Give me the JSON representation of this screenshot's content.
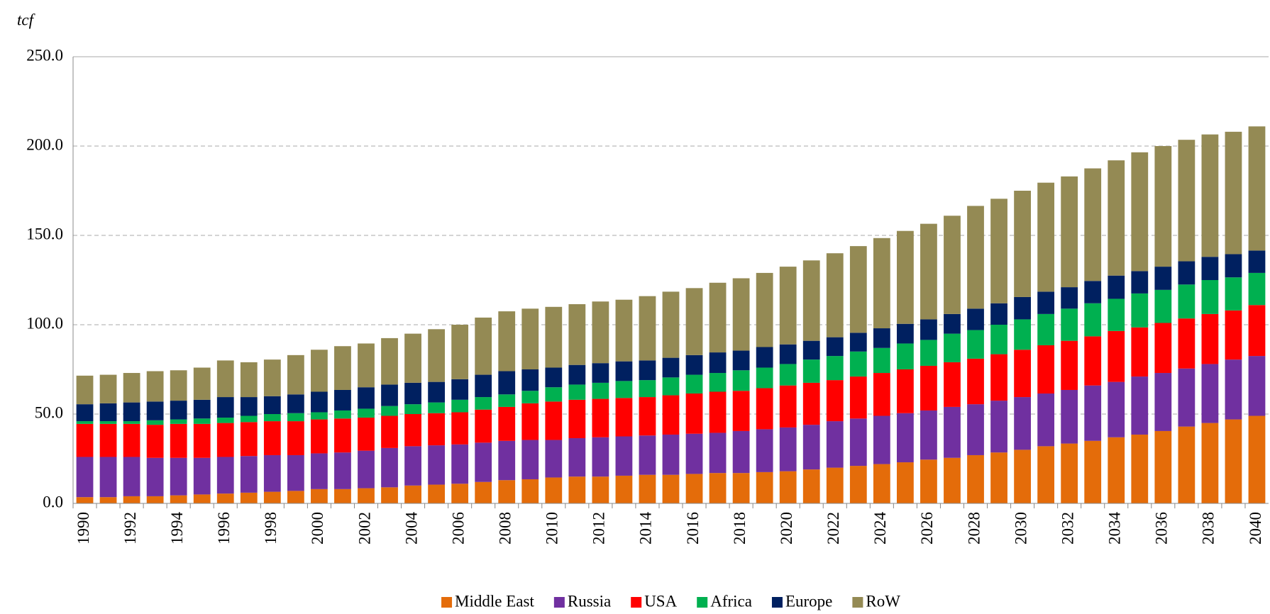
{
  "chart_data": {
    "type": "stacked_bar",
    "y_label": "tcf",
    "categories": [
      "1990",
      null,
      "1992",
      null,
      "1994",
      null,
      "1996",
      null,
      "1998",
      null,
      "2000",
      null,
      "2002",
      null,
      "2004",
      null,
      "2006",
      null,
      "2008",
      null,
      "2010",
      null,
      "2012",
      null,
      "2014",
      null,
      "2016",
      null,
      "2018",
      null,
      "2020",
      null,
      "2022",
      null,
      "2024",
      null,
      "2026",
      null,
      "2028",
      null,
      "2030",
      null,
      "2032",
      null,
      "2034",
      null,
      "2036",
      null,
      "2038",
      null,
      "2040"
    ],
    "series": [
      {
        "name": "Middle East",
        "color": "#e46c0a",
        "values": [
          3.5,
          3.5,
          4,
          4,
          4.5,
          5,
          5.5,
          6,
          6.5,
          7,
          8,
          8,
          8.5,
          9,
          10,
          10.5,
          11,
          12,
          13,
          13.5,
          14.5,
          15,
          15,
          15.5,
          16,
          16,
          16.5,
          17,
          17,
          17.5,
          18,
          19,
          20,
          21,
          22,
          23,
          24.5,
          25.5,
          27,
          28.5,
          30,
          32,
          33.5,
          35,
          37,
          38.5,
          40.5,
          43,
          45,
          47,
          49
        ]
      },
      {
        "name": "Russia",
        "color": "#7030a0",
        "values": [
          22.5,
          22.5,
          22,
          21.5,
          21,
          20.5,
          20.5,
          20.5,
          20.5,
          20,
          20,
          20.5,
          21,
          22,
          22,
          22,
          22,
          22,
          22,
          22,
          21,
          21.5,
          22,
          22,
          22,
          22.5,
          22.5,
          22.5,
          23.5,
          24,
          24.5,
          25,
          26,
          26.5,
          27,
          27.5,
          27.5,
          28.5,
          28.5,
          29,
          29.5,
          29.5,
          30,
          31,
          31,
          32.5,
          32.5,
          32.5,
          33,
          33.5,
          33.5
        ]
      },
      {
        "name": "USA",
        "color": "#ff0000",
        "values": [
          18.5,
          18.5,
          18.5,
          18.5,
          19,
          19,
          19,
          19,
          19,
          19,
          19,
          19,
          18.5,
          18,
          18,
          18,
          18,
          18.5,
          19,
          20.5,
          21.5,
          21.5,
          21.5,
          21.5,
          21.5,
          22,
          22.5,
          23,
          22.5,
          23,
          23.5,
          23.5,
          23,
          23.5,
          24,
          24.5,
          25,
          25,
          25.5,
          26,
          26.5,
          27,
          27.5,
          27.5,
          28.5,
          27.5,
          28,
          28,
          28,
          27.5,
          28.5
        ]
      },
      {
        "name": "Africa",
        "color": "#00b050",
        "values": [
          1.5,
          1.5,
          1.5,
          2.5,
          2.5,
          3,
          3,
          3.5,
          4,
          4.5,
          4,
          4.5,
          5,
          5.5,
          5.5,
          6,
          7,
          7,
          7,
          7,
          8,
          8.5,
          9,
          9.5,
          9.5,
          10,
          10.5,
          10.5,
          11.5,
          11.5,
          12,
          13,
          13.5,
          14,
          14,
          14.5,
          14.5,
          16,
          16,
          16.5,
          17,
          17.5,
          18,
          18.5,
          18,
          19,
          18.5,
          19,
          19,
          18.5,
          18
        ]
      },
      {
        "name": "Europe",
        "color": "#002060",
        "values": [
          9.5,
          10,
          10.5,
          10.5,
          10.5,
          10.5,
          11.5,
          10.5,
          10,
          10.5,
          11.5,
          11.5,
          12,
          12,
          12,
          11.5,
          11.5,
          12.5,
          13,
          12,
          11,
          11,
          11,
          11,
          11,
          11,
          11,
          11.5,
          11,
          11.5,
          11,
          10.5,
          10.5,
          10.5,
          11,
          11,
          11.5,
          11,
          12,
          12,
          12.5,
          12.5,
          12,
          12.5,
          13,
          12.5,
          13,
          13,
          13,
          13,
          12.5
        ]
      },
      {
        "name": "RoW",
        "color": "#948a54",
        "values": [
          16,
          16,
          16.5,
          17,
          17,
          18,
          20.5,
          19.5,
          20.5,
          22,
          23.5,
          24.5,
          24.5,
          26,
          27.5,
          29.5,
          30.5,
          32,
          33.5,
          34,
          34,
          34,
          34.5,
          34.5,
          36,
          37,
          37.5,
          39,
          40.5,
          41.5,
          43.5,
          45,
          47,
          48.5,
          50.5,
          52,
          53.5,
          55,
          57.5,
          58.5,
          59.5,
          61,
          62,
          63,
          64.5,
          66.5,
          67.5,
          68,
          68.5,
          68.5,
          69.5
        ]
      }
    ],
    "ylim": [
      0,
      250
    ],
    "yticks": [
      {
        "value": 0,
        "label": "0.0"
      },
      {
        "value": 50,
        "label": "50.0"
      },
      {
        "value": 100,
        "label": "100.0"
      },
      {
        "value": 150,
        "label": "150.0"
      },
      {
        "value": 200,
        "label": "200.0"
      },
      {
        "value": 250,
        "label": "250.0"
      }
    ],
    "grid": true,
    "legend": "bottom"
  }
}
